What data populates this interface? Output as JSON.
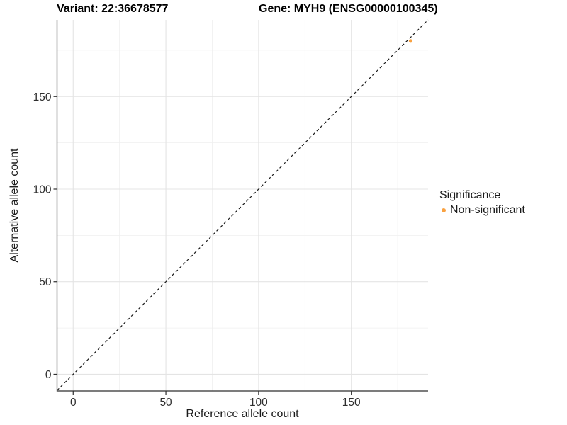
{
  "titles": {
    "variant": "Variant: 22:36678577",
    "gene": "Gene: MYH9 (ENSG00000100345)"
  },
  "axes": {
    "x_label": "Reference allele count",
    "y_label": "Alternative allele count"
  },
  "legend": {
    "title": "Significance",
    "items": [
      {
        "label": "Non-significant",
        "color": "#F9A242"
      }
    ]
  },
  "colors": {
    "point": "#F9A242",
    "grid_major": "#E4E4E4",
    "grid_minor": "#EFEFEF",
    "axis": "#2f2f2f",
    "reference_line": "#1a1a1a",
    "background": "#ffffff"
  },
  "chart_data": {
    "type": "scatter",
    "title": "Variant: 22:36678577    Gene: MYH9 (ENSG00000100345)",
    "xlabel": "Reference allele count",
    "ylabel": "Alternative allele count",
    "xlim": [
      -8.7,
      191.4
    ],
    "ylim": [
      -9.0,
      191.4
    ],
    "x_ticks": [
      0,
      50,
      100,
      150
    ],
    "y_ticks": [
      0,
      50,
      100,
      150
    ],
    "x_minor_ticks": [
      25,
      75,
      125,
      175
    ],
    "y_minor_ticks": [
      25,
      75,
      125,
      175
    ],
    "grid": "major and minor, light gray on white",
    "legend_position": "right",
    "series": [
      {
        "name": "Non-significant",
        "color": "#F9A242",
        "points": [
          [
            182,
            180
          ]
        ]
      }
    ],
    "reference_line": {
      "type": "identity y=x",
      "style": "dashed",
      "color": "#1a1a1a"
    }
  }
}
